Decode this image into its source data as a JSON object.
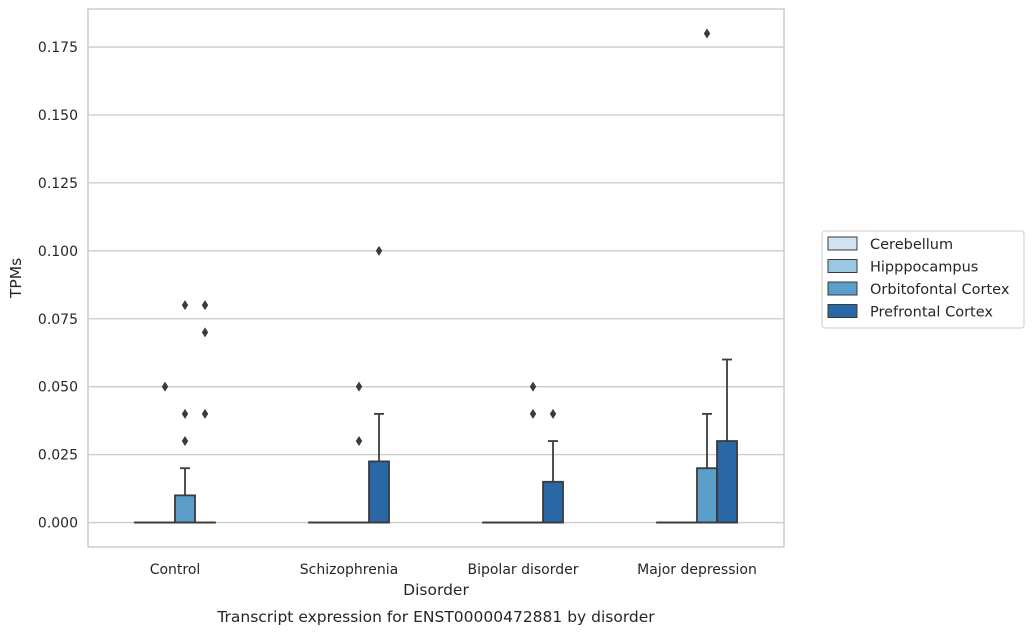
{
  "chart_data": {
    "type": "box",
    "caption": "Transcript expression for ENST00000472881 by disorder",
    "xlabel": "Disorder",
    "ylabel": "TPMs",
    "ylim": [
      -0.009,
      0.189
    ],
    "yticks": [
      "0.000",
      "0.025",
      "0.050",
      "0.075",
      "0.100",
      "0.125",
      "0.150",
      "0.175"
    ],
    "grid": "horizontal",
    "legend_position": "right",
    "categories": [
      "Control",
      "Schizophrenia",
      "Bipolar disorder",
      "Major depression"
    ],
    "series": [
      {
        "name": "Cerebellum",
        "color": "#d1e2f2",
        "boxes": [
          {
            "q1": 0,
            "median": 0,
            "q3": 0,
            "whisker_low": 0,
            "whisker_high": 0,
            "outliers": []
          },
          {
            "q1": 0,
            "median": 0,
            "q3": 0,
            "whisker_low": 0,
            "whisker_high": 0,
            "outliers": []
          },
          {
            "q1": 0,
            "median": 0,
            "q3": 0,
            "whisker_low": 0,
            "whisker_high": 0,
            "outliers": []
          },
          {
            "q1": 0,
            "median": 0,
            "q3": 0,
            "whisker_low": 0,
            "whisker_high": 0,
            "outliers": []
          }
        ]
      },
      {
        "name": "Hipppocampus",
        "color": "#9ac8e0",
        "boxes": [
          {
            "q1": 0,
            "median": 0,
            "q3": 0,
            "whisker_low": 0,
            "whisker_high": 0,
            "outliers": [
              0.05
            ]
          },
          {
            "q1": 0,
            "median": 0,
            "q3": 0,
            "whisker_low": 0,
            "whisker_high": 0,
            "outliers": []
          },
          {
            "q1": 0,
            "median": 0,
            "q3": 0,
            "whisker_low": 0,
            "whisker_high": 0,
            "outliers": []
          },
          {
            "q1": 0,
            "median": 0,
            "q3": 0,
            "whisker_low": 0,
            "whisker_high": 0,
            "outliers": []
          }
        ]
      },
      {
        "name": "Orbitofontal Cortex",
        "color": "#5a9ec9",
        "boxes": [
          {
            "q1": 0,
            "median": 0,
            "q3": 0.01,
            "whisker_low": 0,
            "whisker_high": 0.02,
            "outliers": [
              0.03,
              0.04,
              0.08
            ]
          },
          {
            "q1": 0,
            "median": 0,
            "q3": 0,
            "whisker_low": 0,
            "whisker_high": 0,
            "outliers": [
              0.03,
              0.05
            ]
          },
          {
            "q1": 0,
            "median": 0,
            "q3": 0,
            "whisker_low": 0,
            "whisker_high": 0,
            "outliers": [
              0.04,
              0.05
            ]
          },
          {
            "q1": 0,
            "median": 0,
            "q3": 0.02,
            "whisker_low": 0,
            "whisker_high": 0.04,
            "outliers": [
              0.18
            ]
          }
        ]
      },
      {
        "name": "Prefrontal Cortex",
        "color": "#2a67a6",
        "boxes": [
          {
            "q1": 0,
            "median": 0,
            "q3": 0,
            "whisker_low": 0,
            "whisker_high": 0,
            "outliers": [
              0.04,
              0.07,
              0.08
            ]
          },
          {
            "q1": 0,
            "median": 0,
            "q3": 0.0225,
            "whisker_low": 0,
            "whisker_high": 0.04,
            "outliers": [
              0.1
            ]
          },
          {
            "q1": 0,
            "median": 0,
            "q3": 0.015,
            "whisker_low": 0,
            "whisker_high": 0.03,
            "outliers": [
              0.04
            ]
          },
          {
            "q1": 0,
            "median": 0,
            "q3": 0.03,
            "whisker_low": 0,
            "whisker_high": 0.06,
            "outliers": []
          }
        ]
      }
    ]
  }
}
